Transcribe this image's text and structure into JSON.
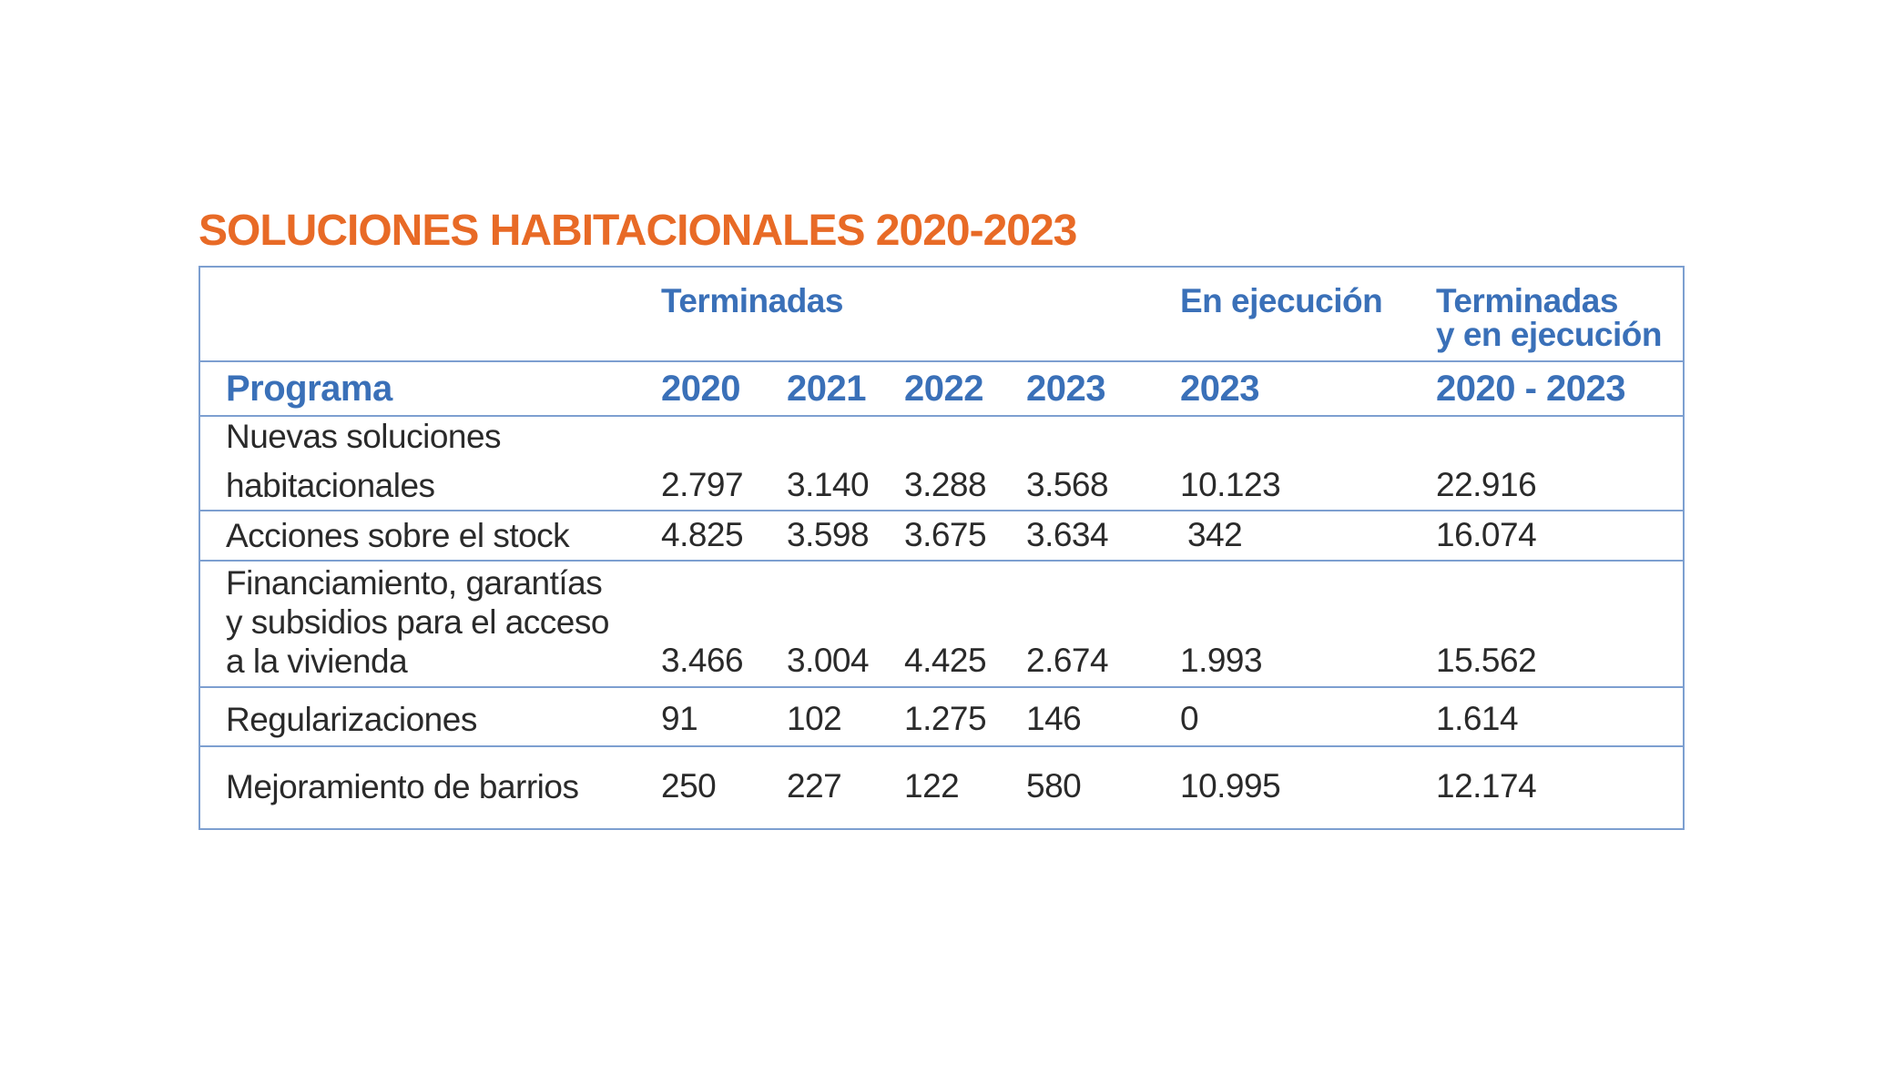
{
  "title": "SOLUCIONES HABITACIONALES 2020-2023",
  "header_groups": {
    "terminadas": "Terminadas",
    "en_ejecucion": "En ejecución",
    "total_line1": "Terminadas",
    "total_line2": "y en ejecución"
  },
  "columns": [
    "Programa",
    "2020",
    "2021",
    "2022",
    "2023",
    "2023",
    "2020 - 2023"
  ],
  "rows": [
    {
      "label_lines": [
        "Nuevas soluciones",
        "habitacionales"
      ],
      "values": [
        "2.797",
        "3.140",
        "3.288",
        "3.568",
        "10.123",
        "22.916"
      ]
    },
    {
      "label_lines": [
        "Acciones sobre el stock"
      ],
      "values": [
        "4.825",
        "3.598",
        "3.675",
        "3.634",
        "342",
        "16.074"
      ]
    },
    {
      "label_lines": [
        "Financiamiento, garantías",
        "y subsidios para el acceso",
        "a la vivienda"
      ],
      "values": [
        "3.466",
        "3.004",
        "4.425",
        "2.674",
        "1.993",
        "15.562"
      ]
    },
    {
      "label_lines": [
        "Regularizaciones"
      ],
      "values": [
        "91",
        "102",
        "1.275",
        "146",
        "0",
        "1.614"
      ]
    },
    {
      "label_lines": [
        "Mejoramiento de barrios"
      ],
      "values": [
        "250",
        "227",
        "122",
        "580",
        "10.995",
        "12.174"
      ]
    }
  ]
}
